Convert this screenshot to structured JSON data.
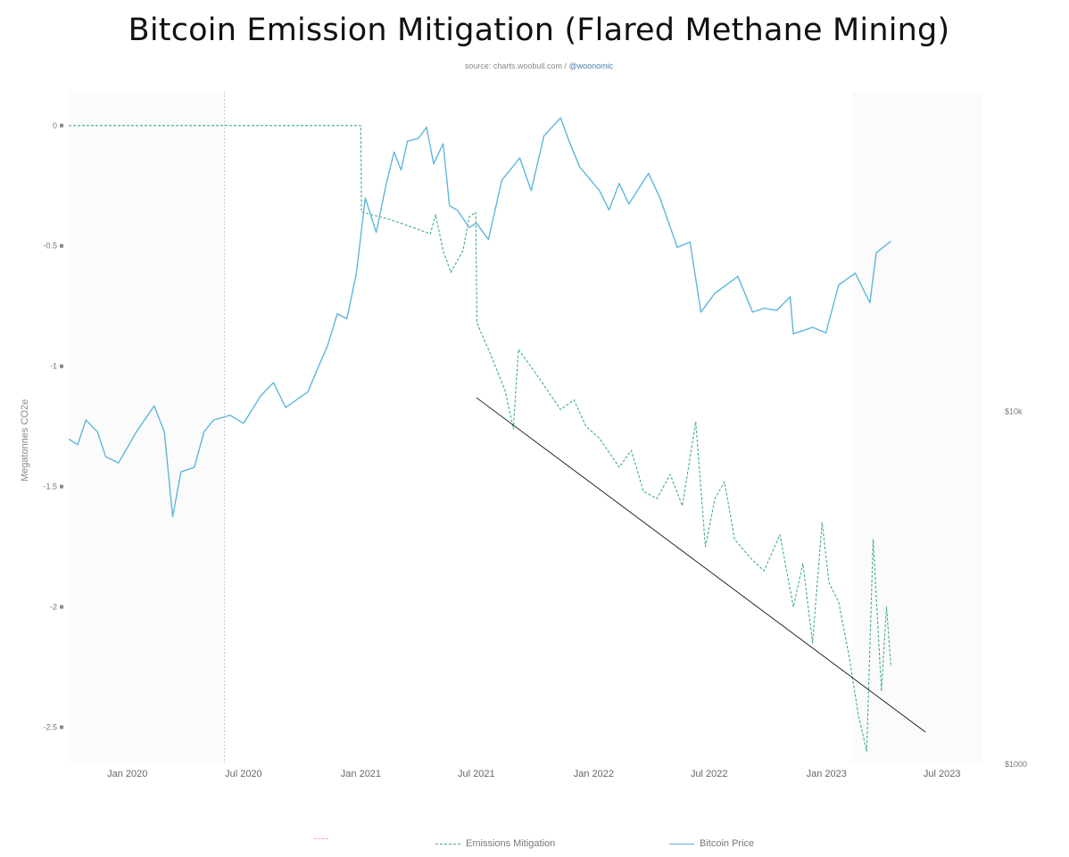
{
  "title": "Bitcoin Emission Mitigation (Flared Methane Mining)",
  "source_prefix": "source: charts.woobull.com / ",
  "source_handle": "@woonomic",
  "chart_data": {
    "type": "line",
    "title": "Bitcoin Emission Mitigation (Flared Methane Mining)",
    "ylabel": "Megatonnes CO2e",
    "y_ticks": [
      {
        "value": 0,
        "label": "0"
      },
      {
        "value": -0.5,
        "label": "-0.5"
      },
      {
        "value": -1,
        "label": "-1"
      },
      {
        "value": -1.5,
        "label": "-1.5"
      },
      {
        "value": -2,
        "label": "-2"
      },
      {
        "value": -2.5,
        "label": "-2.5"
      }
    ],
    "y_right_ticks": [
      "$10k",
      "$1000"
    ],
    "x_ticks": [
      "Jan 2020",
      "Jul 2020",
      "Jan 2021",
      "Jul 2021",
      "Jan 2022",
      "Jul 2022",
      "Jan 2023",
      "Jul 2023"
    ],
    "ylim": [
      -2.65,
      0.14
    ],
    "xlim": [
      "2019-10-01",
      "2023-09-01"
    ],
    "y2_scale": "log",
    "y2lim": [
      1000,
      80000
    ],
    "grid": false,
    "legend_position": "bottom",
    "legend": [
      "",
      "Emissions Mitigation",
      "Bitcoin Price"
    ],
    "colors": {
      "emissions": "#3fae7a",
      "price": "#5fb6dc",
      "trend": "#111111",
      "hidden_series": "#f4aeb7"
    },
    "series": [
      {
        "name": "Emissions Mitigation",
        "axis": "left",
        "style": "dashed",
        "points": [
          [
            "2019-10-01",
            0
          ],
          [
            "2021-01-01",
            0
          ],
          [
            "2021-01-02",
            -0.36
          ],
          [
            "2021-02-15",
            -0.39
          ],
          [
            "2021-03-20",
            -0.42
          ],
          [
            "2021-04-20",
            -0.45
          ],
          [
            "2021-04-28",
            -0.37
          ],
          [
            "2021-05-10",
            -0.52
          ],
          [
            "2021-05-22",
            -0.61
          ],
          [
            "2021-06-10",
            -0.52
          ],
          [
            "2021-06-20",
            -0.38
          ],
          [
            "2021-06-30",
            -0.36
          ],
          [
            "2021-07-02",
            -0.82
          ],
          [
            "2021-07-20",
            -0.93
          ],
          [
            "2021-08-15",
            -1.1
          ],
          [
            "2021-08-28",
            -1.26
          ],
          [
            "2021-09-05",
            -0.93
          ],
          [
            "2021-10-05",
            -1.04
          ],
          [
            "2021-11-10",
            -1.18
          ],
          [
            "2021-12-01",
            -1.14
          ],
          [
            "2021-12-20",
            -1.25
          ],
          [
            "2022-01-10",
            -1.3
          ],
          [
            "2022-02-10",
            -1.42
          ],
          [
            "2022-03-01",
            -1.35
          ],
          [
            "2022-03-20",
            -1.52
          ],
          [
            "2022-04-10",
            -1.55
          ],
          [
            "2022-05-01",
            -1.45
          ],
          [
            "2022-05-20",
            -1.58
          ],
          [
            "2022-06-10",
            -1.23
          ],
          [
            "2022-06-25",
            -1.75
          ],
          [
            "2022-07-10",
            -1.55
          ],
          [
            "2022-07-25",
            -1.48
          ],
          [
            "2022-08-10",
            -1.72
          ],
          [
            "2022-09-05",
            -1.8
          ],
          [
            "2022-09-25",
            -1.85
          ],
          [
            "2022-10-20",
            -1.7
          ],
          [
            "2022-11-10",
            -2.0
          ],
          [
            "2022-11-25",
            -1.82
          ],
          [
            "2022-12-10",
            -2.15
          ],
          [
            "2022-12-25",
            -1.65
          ],
          [
            "2023-01-05",
            -1.9
          ],
          [
            "2023-01-20",
            -1.98
          ],
          [
            "2023-02-05",
            -2.2
          ],
          [
            "2023-02-20",
            -2.45
          ],
          [
            "2023-03-05",
            -2.6
          ],
          [
            "2023-03-15",
            -1.72
          ],
          [
            "2023-03-28",
            -2.35
          ],
          [
            "2023-04-05",
            -2.0
          ],
          [
            "2023-04-12",
            -2.25
          ]
        ]
      },
      {
        "name": "Bitcoin Price",
        "axis": "right",
        "style": "solid",
        "points": [
          [
            "2019-10-01",
            8300
          ],
          [
            "2019-10-15",
            8000
          ],
          [
            "2019-10-28",
            9400
          ],
          [
            "2019-11-15",
            8700
          ],
          [
            "2019-11-28",
            7400
          ],
          [
            "2019-12-18",
            7100
          ],
          [
            "2020-01-15",
            8700
          ],
          [
            "2020-02-12",
            10300
          ],
          [
            "2020-02-28",
            8700
          ],
          [
            "2020-03-12",
            5000
          ],
          [
            "2020-03-25",
            6700
          ],
          [
            "2020-04-15",
            6900
          ],
          [
            "2020-04-30",
            8700
          ],
          [
            "2020-05-15",
            9400
          ],
          [
            "2020-06-10",
            9700
          ],
          [
            "2020-07-01",
            9200
          ],
          [
            "2020-07-28",
            11000
          ],
          [
            "2020-08-17",
            12000
          ],
          [
            "2020-09-05",
            10200
          ],
          [
            "2020-10-10",
            11300
          ],
          [
            "2020-10-25",
            13100
          ],
          [
            "2020-11-10",
            15300
          ],
          [
            "2020-11-25",
            18800
          ],
          [
            "2020-12-10",
            18200
          ],
          [
            "2020-12-25",
            24500
          ],
          [
            "2021-01-08",
            40000
          ],
          [
            "2021-01-25",
            32000
          ],
          [
            "2021-02-10",
            44000
          ],
          [
            "2021-02-22",
            54000
          ],
          [
            "2021-03-05",
            48000
          ],
          [
            "2021-03-15",
            58000
          ],
          [
            "2021-04-01",
            59000
          ],
          [
            "2021-04-14",
            63500
          ],
          [
            "2021-04-25",
            50000
          ],
          [
            "2021-05-10",
            57000
          ],
          [
            "2021-05-20",
            38000
          ],
          [
            "2021-06-01",
            37000
          ],
          [
            "2021-06-20",
            33000
          ],
          [
            "2021-07-01",
            34000
          ],
          [
            "2021-07-20",
            30500
          ],
          [
            "2021-08-10",
            45000
          ],
          [
            "2021-08-25",
            48500
          ],
          [
            "2021-09-07",
            52000
          ],
          [
            "2021-09-25",
            42000
          ],
          [
            "2021-10-15",
            60000
          ],
          [
            "2021-11-10",
            67500
          ],
          [
            "2021-11-25",
            57000
          ],
          [
            "2021-12-10",
            49000
          ],
          [
            "2022-01-10",
            42000
          ],
          [
            "2022-01-25",
            37000
          ],
          [
            "2022-02-10",
            44000
          ],
          [
            "2022-02-25",
            38500
          ],
          [
            "2022-03-28",
            47000
          ],
          [
            "2022-04-15",
            40000
          ],
          [
            "2022-05-12",
            29000
          ],
          [
            "2022-06-01",
            30000
          ],
          [
            "2022-06-18",
            19000
          ],
          [
            "2022-07-10",
            21500
          ],
          [
            "2022-08-15",
            24000
          ],
          [
            "2022-09-07",
            19000
          ],
          [
            "2022-09-25",
            19500
          ],
          [
            "2022-10-15",
            19200
          ],
          [
            "2022-11-05",
            21000
          ],
          [
            "2022-11-10",
            16500
          ],
          [
            "2022-12-10",
            17200
          ],
          [
            "2022-12-31",
            16600
          ],
          [
            "2023-01-20",
            22700
          ],
          [
            "2023-02-15",
            24500
          ],
          [
            "2023-03-10",
            20200
          ],
          [
            "2023-03-20",
            28000
          ],
          [
            "2023-04-12",
            30200
          ]
        ]
      },
      {
        "name": "Trend line",
        "axis": "left",
        "style": "solid",
        "points": [
          [
            "2021-07-01",
            -1.13
          ],
          [
            "2023-06-05",
            -2.52
          ]
        ]
      }
    ]
  },
  "legend": {
    "item0": "",
    "item1": "Emissions Mitigation",
    "item2": "Bitcoin Price"
  }
}
